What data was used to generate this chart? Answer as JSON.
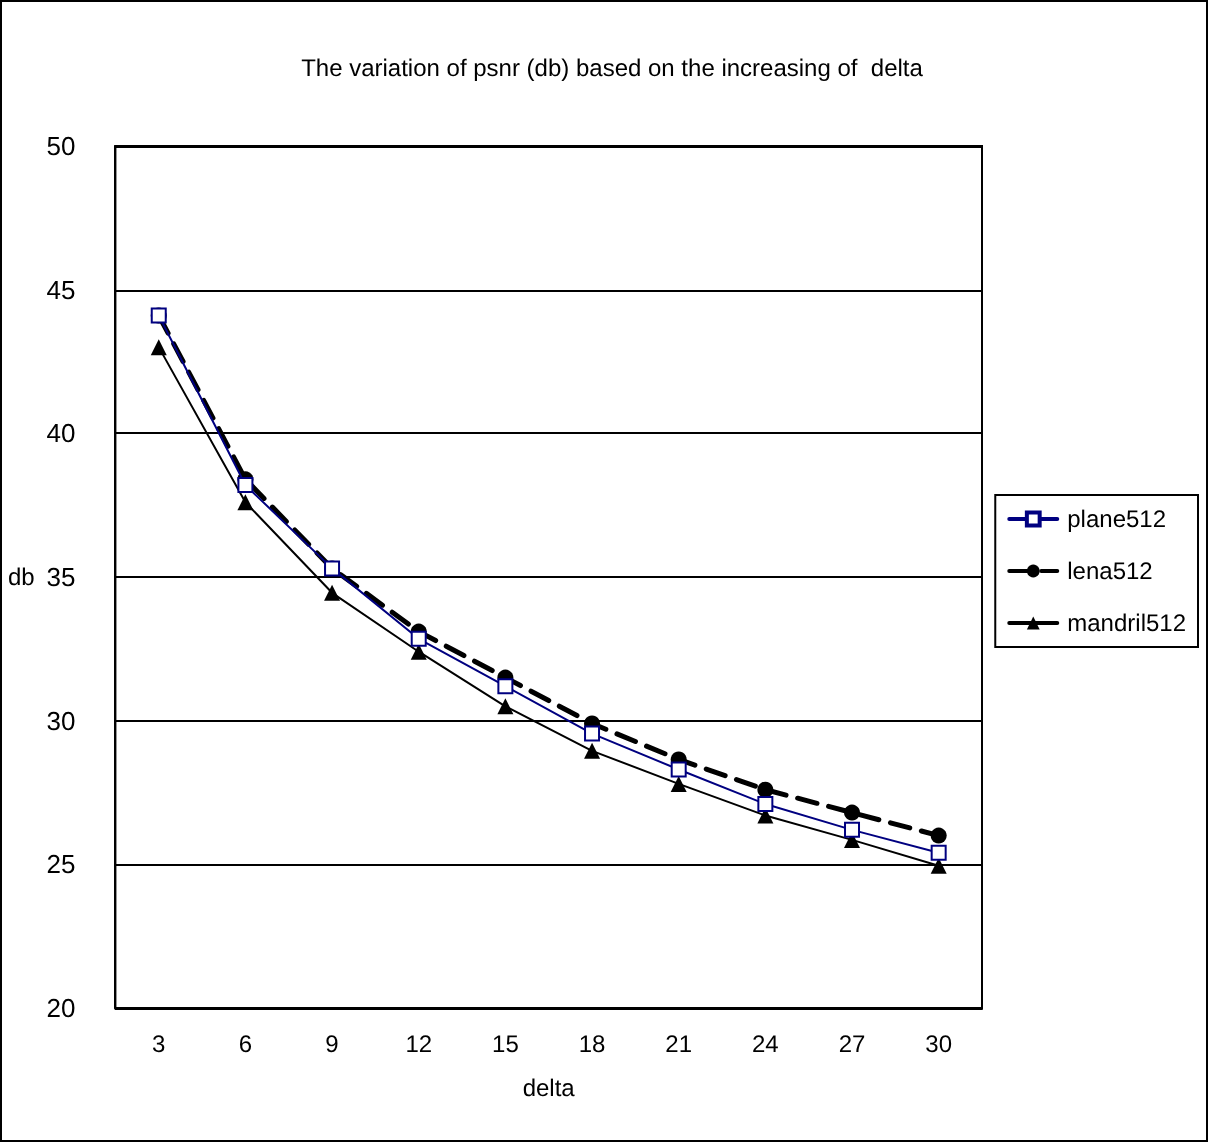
{
  "chart_data": {
    "type": "line",
    "title": "The variation of psnr (db) based on the increasing of  delta",
    "xlabel": "delta",
    "ylabel": "db",
    "categories": [
      "3",
      "6",
      "9",
      "12",
      "15",
      "18",
      "21",
      "24",
      "27",
      "30"
    ],
    "series": [
      {
        "name": "plane512",
        "color": "#000080",
        "marker": "square",
        "line_style": "solid",
        "values": [
          44.1,
          38.2,
          35.3,
          32.85,
          31.2,
          29.55,
          28.3,
          27.1,
          26.2,
          25.4
        ]
      },
      {
        "name": "lena512",
        "color": "#000000",
        "marker": "circle",
        "line_style": "dashed",
        "values": [
          44.1,
          38.4,
          35.3,
          33.1,
          31.5,
          29.9,
          28.65,
          27.6,
          26.8,
          26.0
        ]
      },
      {
        "name": "mandril512",
        "color": "#000000",
        "marker": "triangle",
        "line_style": "solid",
        "values": [
          43.0,
          37.6,
          34.45,
          32.4,
          30.5,
          28.95,
          27.8,
          26.7,
          25.85,
          24.95
        ]
      }
    ],
    "ylim": [
      20,
      50
    ],
    "yticks": [
      20,
      25,
      30,
      35,
      40,
      45,
      50
    ],
    "grid": "y",
    "legend": "right"
  }
}
